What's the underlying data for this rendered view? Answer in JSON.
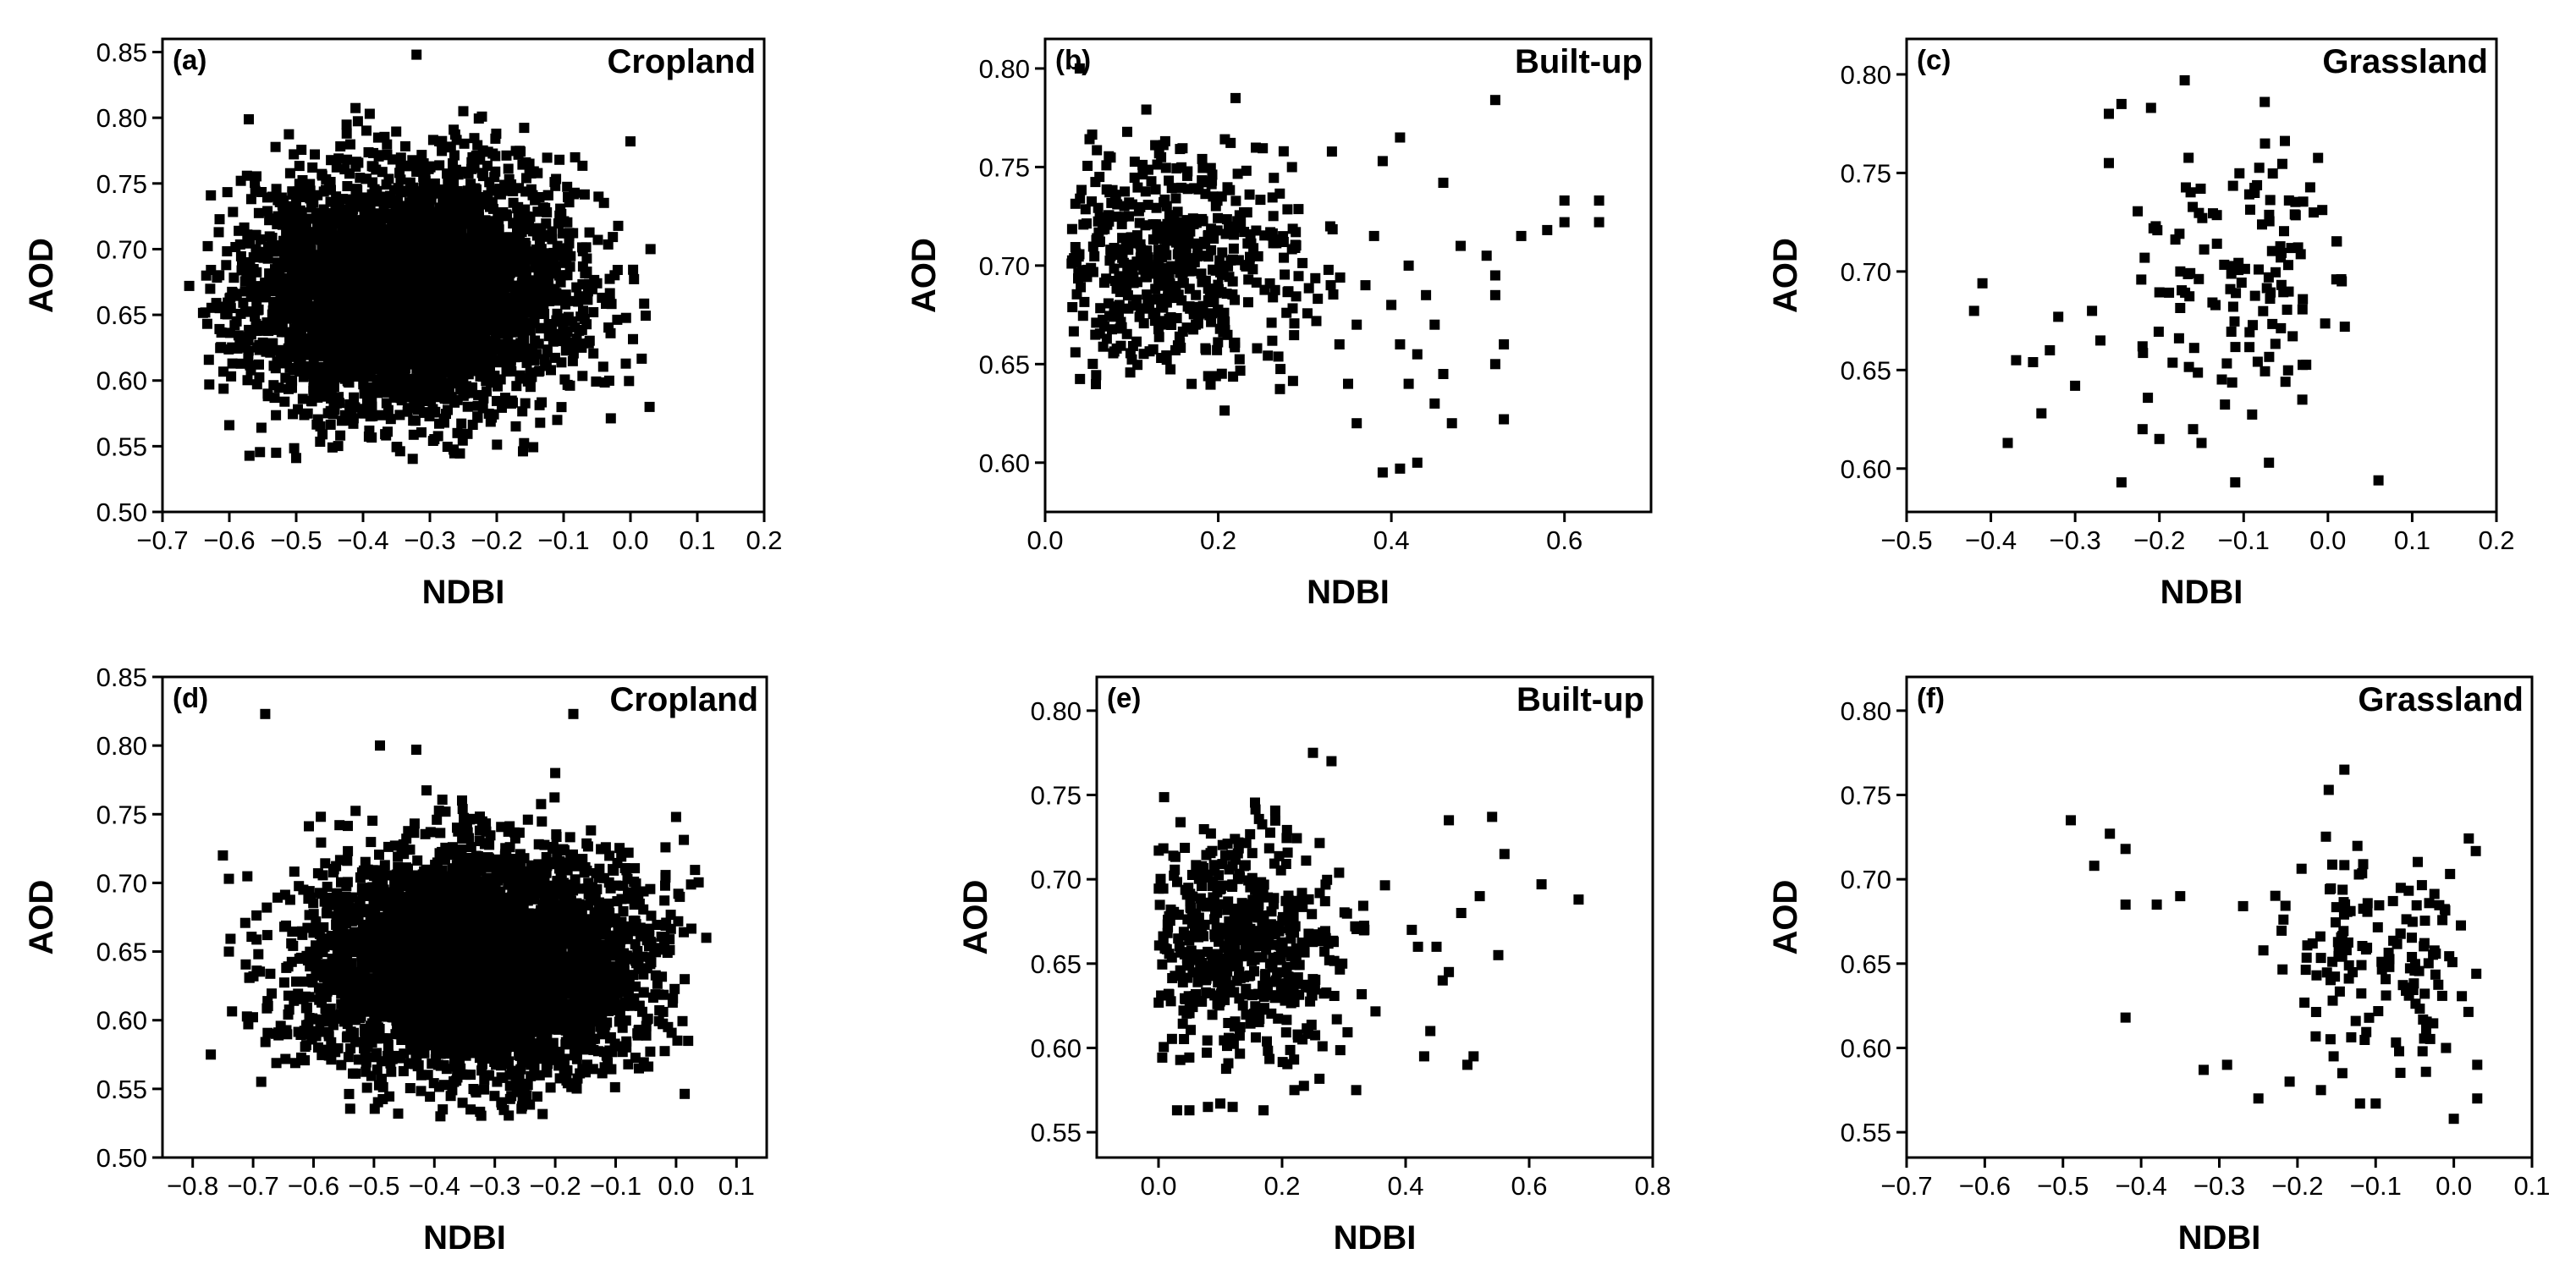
{
  "figure": {
    "description_free": true
  },
  "chart_data": [
    {
      "type": "scatter",
      "panel_label": "(a)",
      "title": "Cropland",
      "xlabel": "NDBI",
      "ylabel": "AOD",
      "xlim": [
        -0.7,
        0.2
      ],
      "ylim": [
        0.5,
        0.86
      ],
      "xticks": [
        -0.7,
        -0.6,
        -0.5,
        -0.4,
        -0.3,
        -0.2,
        -0.1,
        0.0,
        0.1,
        0.2
      ],
      "xtick_labels": [
        "−0.7",
        "−0.6",
        "−0.5",
        "−0.4",
        "−0.3",
        "−0.2",
        "−0.1",
        "0.0",
        "0.1",
        "0.2"
      ],
      "yticks": [
        0.5,
        0.55,
        0.6,
        0.65,
        0.7,
        0.75,
        0.8,
        0.85
      ],
      "ytick_labels": [
        "0.50",
        "0.55",
        "0.60",
        "0.65",
        "0.70",
        "0.75",
        "0.80",
        "0.85"
      ],
      "cloud": {
        "n": 4200,
        "x_mean": -0.33,
        "x_sd": 0.12,
        "y_mean": 0.667,
        "y_sd": 0.045,
        "x_range": [
          -0.64,
          0.03
        ],
        "y_range": [
          0.54,
          0.81
        ]
      },
      "points": [
        [
          -0.32,
          0.848
        ],
        [
          -0.25,
          0.805
        ],
        [
          -0.39,
          0.803
        ],
        [
          0.0,
          0.782
        ],
        [
          -0.6,
          0.566
        ],
        [
          -0.53,
          0.545
        ],
        [
          -0.5,
          0.541
        ],
        [
          0.03,
          0.7
        ],
        [
          -0.66,
          0.672
        ],
        [
          -0.63,
          0.597
        ]
      ]
    },
    {
      "type": "scatter",
      "panel_label": "(b)",
      "title": "Built-up",
      "xlabel": "NDBI",
      "ylabel": "AOD",
      "xlim": [
        0.0,
        0.7
      ],
      "ylim": [
        0.575,
        0.815
      ],
      "xticks": [
        0.0,
        0.2,
        0.4,
        0.6
      ],
      "xtick_labels": [
        "0.0",
        "0.2",
        "0.4",
        "0.6"
      ],
      "yticks": [
        0.6,
        0.65,
        0.7,
        0.75,
        0.8
      ],
      "ytick_labels": [
        "0.60",
        "0.65",
        "0.70",
        "0.75",
        "0.80"
      ],
      "cloud": {
        "n": 560,
        "x_mean": 0.15,
        "x_sd": 0.075,
        "y_mean": 0.7,
        "y_sd": 0.03,
        "x_range": [
          0.03,
          0.38
        ],
        "y_range": [
          0.6,
          0.78
        ]
      },
      "points": [
        [
          0.04,
          0.8
        ],
        [
          0.22,
          0.785
        ],
        [
          0.52,
          0.784
        ],
        [
          0.41,
          0.765
        ],
        [
          0.39,
          0.753
        ],
        [
          0.46,
          0.742
        ],
        [
          0.6,
          0.733
        ],
        [
          0.64,
          0.733
        ],
        [
          0.6,
          0.722
        ],
        [
          0.64,
          0.722
        ],
        [
          0.55,
          0.715
        ],
        [
          0.58,
          0.718
        ],
        [
          0.48,
          0.71
        ],
        [
          0.51,
          0.705
        ],
        [
          0.52,
          0.695
        ],
        [
          0.52,
          0.685
        ],
        [
          0.53,
          0.66
        ],
        [
          0.52,
          0.65
        ],
        [
          0.53,
          0.622
        ],
        [
          0.42,
          0.7
        ],
        [
          0.44,
          0.685
        ],
        [
          0.45,
          0.67
        ],
        [
          0.43,
          0.655
        ],
        [
          0.46,
          0.645
        ],
        [
          0.45,
          0.63
        ],
        [
          0.47,
          0.62
        ],
        [
          0.4,
          0.68
        ],
        [
          0.41,
          0.66
        ],
        [
          0.42,
          0.64
        ],
        [
          0.39,
          0.595
        ],
        [
          0.41,
          0.597
        ],
        [
          0.43,
          0.6
        ],
        [
          0.38,
          0.715
        ],
        [
          0.37,
          0.69
        ],
        [
          0.36,
          0.67
        ],
        [
          0.35,
          0.64
        ],
        [
          0.36,
          0.62
        ],
        [
          0.34,
          0.66
        ],
        [
          0.33,
          0.69
        ]
      ]
    },
    {
      "type": "scatter",
      "panel_label": "(c)",
      "title": "Grassland",
      "xlabel": "NDBI",
      "ylabel": "AOD",
      "xlim": [
        -0.5,
        0.2
      ],
      "ylim": [
        0.578,
        0.818
      ],
      "xticks": [
        -0.5,
        -0.4,
        -0.3,
        -0.2,
        -0.1,
        0.0,
        0.1,
        0.2
      ],
      "xtick_labels": [
        "−0.5",
        "−0.4",
        "−0.3",
        "−0.2",
        "−0.1",
        "0.0",
        "0.1",
        "0.2"
      ],
      "yticks": [
        0.6,
        0.65,
        0.7,
        0.75,
        0.8
      ],
      "ytick_labels": [
        "0.60",
        "0.65",
        "0.70",
        "0.75",
        "0.80"
      ],
      "cloud": {
        "n": 140,
        "x_mean": -0.1,
        "x_sd": 0.065,
        "y_mean": 0.695,
        "y_sd": 0.035,
        "x_range": [
          -0.26,
          0.02
        ],
        "y_range": [
          0.6,
          0.77
        ]
      },
      "points": [
        [
          -0.17,
          0.797
        ],
        [
          -0.245,
          0.785
        ],
        [
          -0.26,
          0.78
        ],
        [
          -0.21,
          0.783
        ],
        [
          -0.075,
          0.786
        ],
        [
          -0.26,
          0.755
        ],
        [
          -0.41,
          0.694
        ],
        [
          -0.42,
          0.68
        ],
        [
          -0.35,
          0.654
        ],
        [
          -0.37,
          0.655
        ],
        [
          -0.33,
          0.66
        ],
        [
          -0.32,
          0.677
        ],
        [
          -0.34,
          0.628
        ],
        [
          -0.38,
          0.613
        ],
        [
          -0.3,
          0.642
        ],
        [
          -0.245,
          0.593
        ],
        [
          -0.11,
          0.593
        ],
        [
          0.06,
          0.594
        ],
        [
          -0.07,
          0.603
        ],
        [
          -0.2,
          0.615
        ],
        [
          -0.22,
          0.62
        ],
        [
          -0.16,
          0.62
        ],
        [
          -0.15,
          0.613
        ],
        [
          0.01,
          0.696
        ],
        [
          0.02,
          0.672
        ],
        [
          -0.28,
          0.68
        ],
        [
          -0.27,
          0.665
        ],
        [
          -0.22,
          0.662
        ]
      ]
    },
    {
      "type": "scatter",
      "panel_label": "(d)",
      "title": "Cropland",
      "xlabel": "NDBI",
      "ylabel": "AOD",
      "xlim": [
        -0.85,
        0.15
      ],
      "ylim": [
        0.5,
        0.85
      ],
      "xticks": [
        -0.8,
        -0.7,
        -0.6,
        -0.5,
        -0.4,
        -0.3,
        -0.2,
        -0.1,
        0.0,
        0.1
      ],
      "xtick_labels": [
        "−0.8",
        "−0.7",
        "−0.6",
        "−0.5",
        "−0.4",
        "−0.3",
        "−0.2",
        "−0.1",
        "0.0",
        "0.1"
      ],
      "yticks": [
        0.5,
        0.55,
        0.6,
        0.65,
        0.7,
        0.75,
        0.8,
        0.85
      ],
      "ytick_labels": [
        "0.50",
        "0.55",
        "0.60",
        "0.65",
        "0.70",
        "0.75",
        "0.80",
        "0.85"
      ],
      "cloud": {
        "n": 4200,
        "x_mean": -0.33,
        "x_sd": 0.14,
        "y_mean": 0.642,
        "y_sd": 0.04,
        "x_range": [
          -0.75,
          0.04
        ],
        "y_range": [
          0.53,
          0.77
        ]
      },
      "points": [
        [
          -0.68,
          0.823
        ],
        [
          -0.17,
          0.823
        ],
        [
          -0.49,
          0.8
        ],
        [
          -0.43,
          0.797
        ],
        [
          -0.2,
          0.78
        ],
        [
          0.0,
          0.748
        ],
        [
          0.05,
          0.66
        ],
        [
          -0.75,
          0.72
        ],
        [
          -0.74,
          0.703
        ],
        [
          -0.77,
          0.575
        ],
        [
          -0.74,
          0.65
        ],
        [
          -0.46,
          0.532
        ],
        [
          -0.39,
          0.53
        ],
        [
          -0.34,
          0.535
        ],
        [
          0.02,
          0.585
        ]
      ]
    },
    {
      "type": "scatter",
      "panel_label": "(e)",
      "title": "Built-up",
      "xlabel": "NDBI",
      "ylabel": "AOD",
      "xlim": [
        -0.1,
        0.8
      ],
      "ylim": [
        0.535,
        0.82
      ],
      "xticks": [
        0.0,
        0.2,
        0.4,
        0.6,
        0.8
      ],
      "xtick_labels": [
        "0.0",
        "0.2",
        "0.4",
        "0.6",
        "0.8"
      ],
      "yticks": [
        0.55,
        0.6,
        0.65,
        0.7,
        0.75,
        0.8
      ],
      "ytick_labels": [
        "0.55",
        "0.60",
        "0.65",
        "0.70",
        "0.75",
        "0.80"
      ],
      "cloud": {
        "n": 560,
        "x_mean": 0.13,
        "x_sd": 0.09,
        "y_mean": 0.66,
        "y_sd": 0.035,
        "x_range": [
          0.0,
          0.4
        ],
        "y_range": [
          0.575,
          0.75
        ]
      },
      "points": [
        [
          0.25,
          0.775
        ],
        [
          0.28,
          0.77
        ],
        [
          0.54,
          0.737
        ],
        [
          0.47,
          0.735
        ],
        [
          0.56,
          0.715
        ],
        [
          0.62,
          0.697
        ],
        [
          0.68,
          0.688
        ],
        [
          0.52,
          0.69
        ],
        [
          0.49,
          0.68
        ],
        [
          0.55,
          0.655
        ],
        [
          0.46,
          0.64
        ],
        [
          0.51,
          0.595
        ],
        [
          0.5,
          0.59
        ],
        [
          0.43,
          0.595
        ],
        [
          0.44,
          0.61
        ],
        [
          0.42,
          0.66
        ],
        [
          0.41,
          0.67
        ],
        [
          0.45,
          0.66
        ],
        [
          0.47,
          0.645
        ],
        [
          0.03,
          0.563
        ],
        [
          0.05,
          0.563
        ],
        [
          0.08,
          0.565
        ],
        [
          0.1,
          0.567
        ],
        [
          0.12,
          0.565
        ],
        [
          0.17,
          0.563
        ],
        [
          0.22,
          0.575
        ],
        [
          0.32,
          0.575
        ]
      ]
    },
    {
      "type": "scatter",
      "panel_label": "(f)",
      "title": "Grassland",
      "xlabel": "NDBI",
      "ylabel": "AOD",
      "xlim": [
        -0.7,
        0.1
      ],
      "ylim": [
        0.535,
        0.82
      ],
      "xticks": [
        -0.7,
        -0.6,
        -0.5,
        -0.4,
        -0.3,
        -0.2,
        -0.1,
        0.0,
        0.1
      ],
      "xtick_labels": [
        "−0.7",
        "−0.6",
        "−0.5",
        "−0.4",
        "−0.3",
        "−0.2",
        "−0.1",
        "0.0",
        "0.1"
      ],
      "yticks": [
        0.55,
        0.6,
        0.65,
        0.7,
        0.75,
        0.8
      ],
      "ytick_labels": [
        "0.55",
        "0.60",
        "0.65",
        "0.70",
        "0.75",
        "0.80"
      ],
      "cloud": {
        "n": 150,
        "x_mean": -0.1,
        "x_sd": 0.07,
        "y_mean": 0.66,
        "y_sd": 0.033,
        "x_range": [
          -0.28,
          0.03
        ],
        "y_range": [
          0.575,
          0.73
        ]
      },
      "points": [
        [
          -0.14,
          0.765
        ],
        [
          -0.16,
          0.753
        ],
        [
          -0.49,
          0.735
        ],
        [
          -0.44,
          0.727
        ],
        [
          -0.42,
          0.718
        ],
        [
          -0.46,
          0.708
        ],
        [
          -0.42,
          0.685
        ],
        [
          -0.38,
          0.685
        ],
        [
          -0.35,
          0.69
        ],
        [
          -0.42,
          0.618
        ],
        [
          -0.32,
          0.587
        ],
        [
          -0.29,
          0.59
        ],
        [
          -0.25,
          0.57
        ],
        [
          -0.21,
          0.58
        ],
        [
          -0.17,
          0.575
        ],
        [
          -0.12,
          0.567
        ],
        [
          -0.1,
          0.567
        ],
        [
          0.0,
          0.558
        ],
        [
          0.03,
          0.57
        ],
        [
          0.03,
          0.59
        ],
        [
          -0.01,
          0.6
        ],
        [
          -0.04,
          0.598
        ],
        [
          -0.07,
          0.598
        ]
      ]
    }
  ]
}
